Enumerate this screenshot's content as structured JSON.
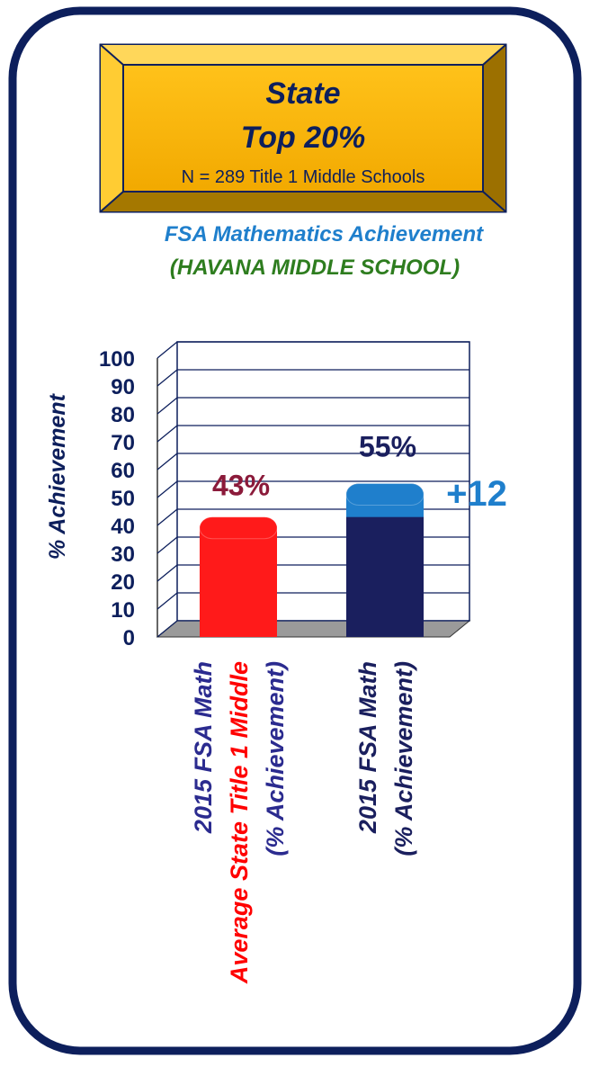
{
  "banner": {
    "title": "State",
    "subtitle": "Top 20%",
    "note": "N = 289 Title 1 Middle Schools"
  },
  "chart_data": {
    "type": "bar",
    "title": "FSA Mathematics Achievement",
    "subtitle": "(HAVANA MIDDLE SCHOOL)",
    "y_label": "% Achievement",
    "categories": [
      [
        "2015 FSA Math",
        "Average State Title 1 Middle",
        "(% Achievement)"
      ],
      [
        "2015 FSA Math",
        "(% Achievement)"
      ]
    ],
    "label_colors": [
      [
        "#2b2b8f",
        "#ff0000",
        "#2b2b8f"
      ],
      [
        "#1a1f5e",
        "#1a1f5e"
      ]
    ],
    "values": [
      43,
      55
    ],
    "value_labels": [
      "43%",
      "55%"
    ],
    "colors": [
      "#ff1a1a",
      "#1a1f5e"
    ],
    "value_label_colors": [
      "#8b1a3a",
      "#1a1f5e"
    ],
    "difference": {
      "value": 12,
      "label": "+12",
      "color": "#1f7fcc"
    },
    "ylim": [
      0,
      100
    ],
    "yticks": [
      0,
      10,
      20,
      30,
      40,
      50,
      60,
      70,
      80,
      90,
      100
    ],
    "grid": true
  }
}
